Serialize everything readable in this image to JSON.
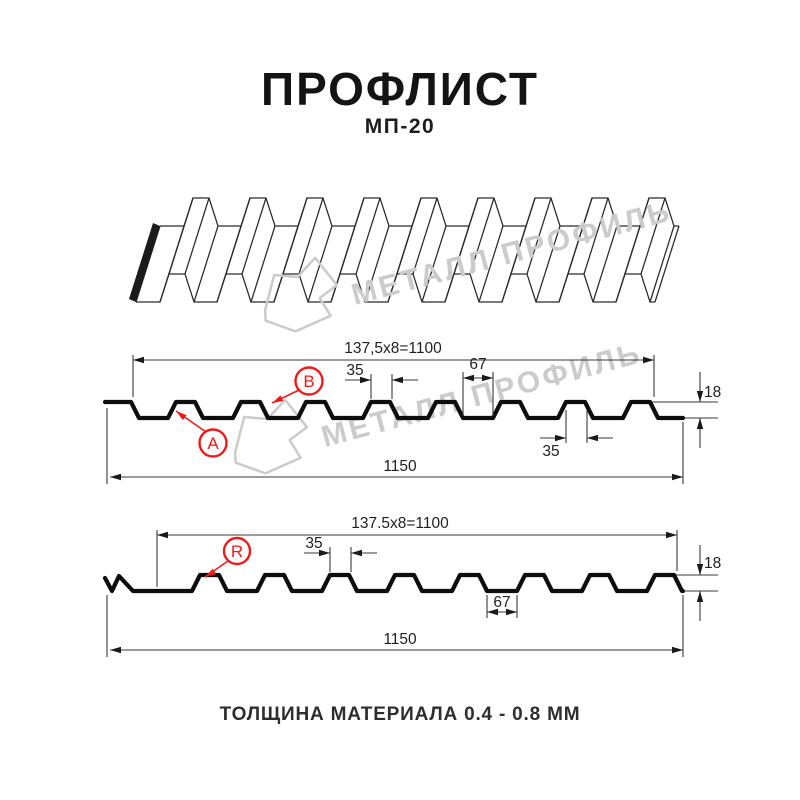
{
  "page": {
    "title": "ПРОФЛИСТ",
    "subtitle": "МП-20",
    "footer": "ТОЛЩИНА МАТЕРИАЛА 0.4 - 0.8 ММ"
  },
  "watermark": {
    "brand": "МЕТАЛЛ ПРОФИЛЬ",
    "color": "#cbcbcb"
  },
  "colors": {
    "accent_red": "#ee1b1b",
    "line_black": "#0d0d0d"
  },
  "sections": [
    {
      "id": "top-cross-section",
      "span_label": "137,5x8=1100",
      "crest_label": "35",
      "valley_label": "67",
      "height_label": "18",
      "crest_bottom_label": "35",
      "total_label": "1150",
      "callouts": [
        "A",
        "B"
      ]
    },
    {
      "id": "bottom-cross-section",
      "span_label": "137.5x8=1100",
      "crest_label": "35",
      "valley_label": "67",
      "height_label": "18",
      "total_label": "1150",
      "callouts": [
        "R"
      ]
    }
  ]
}
